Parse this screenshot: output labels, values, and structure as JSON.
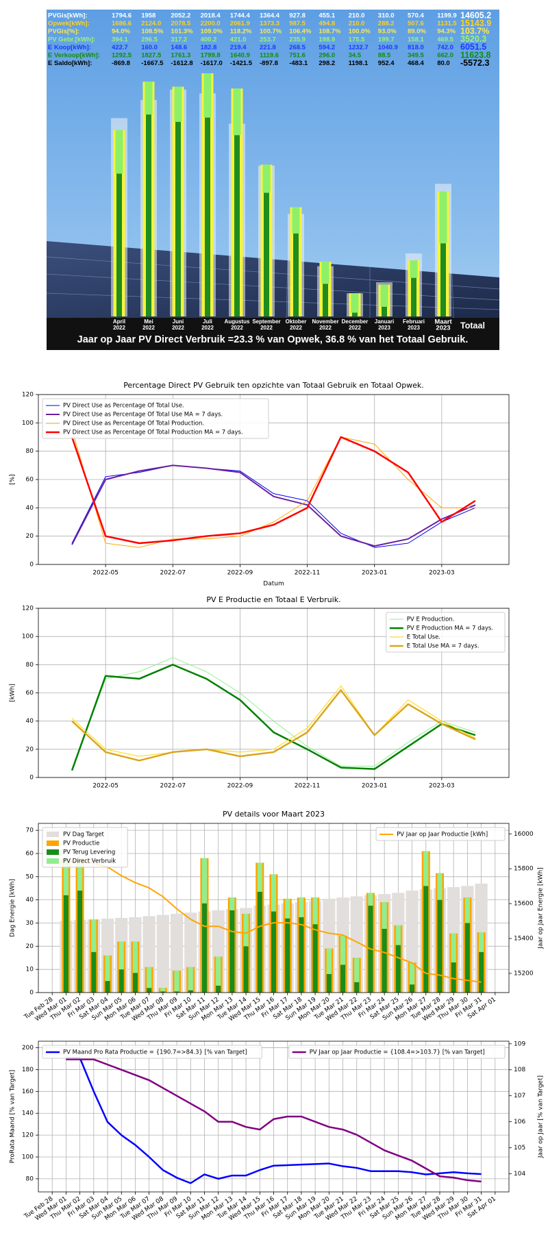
{
  "chart_data": [
    {
      "type": "summary",
      "categories": [
        [
          "April",
          "2022"
        ],
        [
          "Mei",
          "2022"
        ],
        [
          "Juni",
          "2022"
        ],
        [
          "Juli",
          "2022"
        ],
        [
          "Augustus",
          "2022"
        ],
        [
          "September",
          "2022"
        ],
        [
          "Oktober",
          "2022"
        ],
        [
          "November",
          "2022"
        ],
        [
          "December",
          "2022"
        ],
        [
          "Januari",
          "2023"
        ],
        [
          "Februari",
          "2023"
        ],
        [
          "Maart",
          "2023"
        ]
      ],
      "total_label": "Totaal",
      "rows": [
        {
          "name": "PVGis[kWh]:",
          "color": "#ffffff",
          "bar_color": "#eef3f6",
          "values": [
            1794.6,
            1958,
            2052.2,
            2018.4,
            1744.4,
            1364.4,
            927.8,
            455.1,
            210.0,
            310.0,
            570.4,
            1199.9
          ],
          "value_labels": [
            "1794.6",
            "1958",
            "2052.2",
            "2018.4",
            "1744.4",
            "1364.4",
            "927.8",
            "455.1",
            "210.0",
            "310.0",
            "570.4",
            "1199.9"
          ],
          "total": 14605.2,
          "total_label": "14605.2"
        },
        {
          "name": "Opwek[kWh]:",
          "color": "#ffd21f",
          "bar_color": "#f4f43c",
          "values": [
            1686.6,
            2124.0,
            2078.5,
            2200.0,
            2061.9,
            1373.3,
            987.5,
            494.8,
            210.0,
            288.2,
            507.6,
            1131.5
          ],
          "value_labels": [
            "1686.6",
            "2124.0",
            "2078.5",
            "2200.0",
            "2061.9",
            "1373.3",
            "987.5",
            "494.8",
            "210.0",
            "288.2",
            "507.6",
            "1131.5"
          ],
          "total": 15143.9,
          "total_label": "15143.9"
        },
        {
          "name": "PVGis[%]:",
          "color": "#ffe94d",
          "values": [
            94.0,
            108.5,
            101.3,
            109.0,
            118.2,
            100.7,
            106.4,
            108.7,
            100.0,
            93.0,
            89.0,
            94.3
          ],
          "value_labels": [
            "94.0%",
            "108.5%",
            "101.3%",
            "109.0%",
            "118.2%",
            "100.7%",
            "106.4%",
            "108.7%",
            "100.0%",
            "93.0%",
            "89.0%",
            "94.3%"
          ],
          "total": 103.7,
          "total_label": "103.7%"
        },
        {
          "name": "PV Gebr.[kWh]:",
          "color": "#9df27a",
          "bar_color": "#8ef06a",
          "values": [
            394.1,
            296.5,
            317.2,
            400.2,
            421.0,
            253.7,
            235.9,
            198.9,
            175.5,
            199.7,
            158.1,
            469.5
          ],
          "value_labels": [
            "394.1",
            "296.5",
            "317.2",
            "400.2",
            "421.0",
            "253.7",
            "235.9",
            "198.9",
            "175.5",
            "199.7",
            "158.1",
            "469.5"
          ],
          "total": 3520.3,
          "total_label": "3520.3"
        },
        {
          "name": "E Koop[kWh]:",
          "color": "#1a3cff",
          "values": [
            422.7,
            160.0,
            148.6,
            182.8,
            219.4,
            221.8,
            268.5,
            594.2,
            1232.7,
            1040.9,
            818.0,
            742.0
          ],
          "value_labels": [
            "422.7",
            "160.0",
            "148.6",
            "182.8",
            "219.4",
            "221.8",
            "268.5",
            "594.2",
            "1232.7",
            "1040.9",
            "818.0",
            "742.0"
          ],
          "total": 6051.5,
          "total_label": "6051.5"
        },
        {
          "name": "E Verkoop[kWh]:",
          "color": "#118a11",
          "bar_color": "#1e8c1e",
          "values": [
            1292.5,
            1827.5,
            1761.3,
            1799.8,
            1640.9,
            1119.6,
            751.6,
            296.0,
            34.5,
            88.5,
            349.5,
            662.0
          ],
          "value_labels": [
            "1292.5",
            "1827.5",
            "1761.3",
            "1799.8",
            "1640.9",
            "1119.6",
            "751.6",
            "296.0",
            "34.5",
            "88.5",
            "349.5",
            "662.0"
          ],
          "total": 11623.8,
          "total_label": "11623.8"
        },
        {
          "name": "E Saldo[kWh]:",
          "color": "#000000",
          "values": [
            -869.8,
            -1667.5,
            -1612.8,
            -1617.0,
            -1421.5,
            -897.8,
            -483.1,
            298.2,
            1198.1,
            952.4,
            468.4,
            80.0
          ],
          "value_labels": [
            "-869.8",
            "-1667.5",
            "-1612.8",
            "-1617.0",
            "-1421.5",
            "-897.8",
            "-483.1",
            "298.2",
            "1198.1",
            "952.4",
            "468.4",
            "80.0"
          ],
          "total": -5572.3,
          "total_label": "-5572.3"
        }
      ],
      "caption": "Jaar op Jaar PV Direct Verbruik =23.3 % van Opwek, 36.8 % van het Totaal Gebruik."
    },
    {
      "type": "line",
      "title": "Percentage Direct PV Gebruik ten opzichte van Totaal Gebruik en Totaal Opwek.",
      "xlabel": "Datum",
      "ylabel": "[%]",
      "x": [
        "2022-04",
        "2022-05",
        "2022-06",
        "2022-07",
        "2022-08",
        "2022-09",
        "2022-10",
        "2022-11",
        "2022-12",
        "2023-01",
        "2023-02",
        "2023-03",
        "2023-04"
      ],
      "xlim": [
        "2022-03",
        "2023-05"
      ],
      "xticks": [
        "2022-05",
        "2022-07",
        "2022-09",
        "2022-11",
        "2023-01",
        "2023-03"
      ],
      "ylim": [
        0,
        120
      ],
      "yticks": [
        0,
        20,
        40,
        60,
        80,
        100,
        120
      ],
      "grid": true,
      "legend": "upper left",
      "series": [
        {
          "name": "PV Direct Use as Percentage Of Total Use.",
          "color": "#0000ee",
          "linewidth": 1,
          "values": [
            15,
            62,
            65,
            70,
            68,
            66,
            50,
            45,
            22,
            12,
            15,
            30,
            40
          ]
        },
        {
          "name": "PV Direct Use as Percentage Of Total Use MA = 7 days.",
          "color": "#6a1fa0",
          "linewidth": 2,
          "values": [
            14,
            60,
            66,
            70,
            68,
            65,
            48,
            42,
            20,
            13,
            18,
            32,
            42
          ]
        },
        {
          "name": "PV Direct Use as Percentage Of Total Production.",
          "color": "#ffa500",
          "linewidth": 1,
          "values": [
            95,
            15,
            12,
            18,
            18,
            20,
            30,
            45,
            90,
            85,
            60,
            40,
            40
          ]
        },
        {
          "name": "PV Direct Use as Percentage Of Total Production MA = 7 days.",
          "color": "#ff0000",
          "linewidth": 2.5,
          "values": [
            90,
            20,
            15,
            17,
            20,
            22,
            28,
            40,
            90,
            80,
            65,
            30,
            45
          ]
        }
      ]
    },
    {
      "type": "line",
      "title": "PV E Productie en Totaal E Verbruik.",
      "ylabel": "[kWh]",
      "x": [
        "2022-04",
        "2022-05",
        "2022-06",
        "2022-07",
        "2022-08",
        "2022-09",
        "2022-10",
        "2022-11",
        "2022-12",
        "2023-01",
        "2023-02",
        "2023-03",
        "2023-04"
      ],
      "xlim": [
        "2022-03",
        "2023-05"
      ],
      "xticks": [
        "2022-05",
        "2022-07",
        "2022-09",
        "2022-11",
        "2023-01",
        "2023-03"
      ],
      "ylim": [
        0,
        120
      ],
      "yticks": [
        0,
        20,
        40,
        60,
        80,
        100,
        120
      ],
      "grid": true,
      "legend": "upper right",
      "series": [
        {
          "name": "PV E Production.",
          "color": "#90ee90",
          "linewidth": 1,
          "values": [
            5,
            70,
            75,
            85,
            75,
            60,
            40,
            22,
            8,
            8,
            25,
            40,
            32
          ]
        },
        {
          "name": "PV E Production MA = 7 days.",
          "color": "#008000",
          "linewidth": 2.5,
          "values": [
            5,
            72,
            70,
            80,
            70,
            55,
            32,
            20,
            7,
            6,
            22,
            38,
            30
          ]
        },
        {
          "name": "E Total Use.",
          "color": "#ffd700",
          "linewidth": 1,
          "values": [
            42,
            20,
            15,
            18,
            20,
            18,
            20,
            35,
            65,
            30,
            55,
            40,
            28
          ]
        },
        {
          "name": "E Total Use MA = 7 days.",
          "color": "#daa520",
          "linewidth": 2.5,
          "values": [
            40,
            18,
            12,
            18,
            20,
            15,
            18,
            32,
            62,
            30,
            52,
            38,
            27
          ]
        }
      ]
    },
    {
      "type": "bar",
      "title": "PV details voor Maart 2023",
      "ylabel": "Dag Energie [kWh]",
      "y2label": "Jaar op Jaar Energie [kWh]",
      "categories": [
        "Tue Feb 28",
        "Wed Mar 01",
        "Thu Mar 02",
        "Fri Mar 03",
        "Sat Mar 04",
        "Sun Mar 05",
        "Mon Mar 06",
        "Tue Mar 07",
        "Wed Mar 08",
        "Thu Mar 09",
        "Fri Mar 10",
        "Sat Mar 11",
        "Sun Mar 12",
        "Mon Mar 13",
        "Tue Mar 14",
        "Wed Mar 15",
        "Thu Mar 16",
        "Fri Mar 17",
        "Sat Mar 18",
        "Sun Mar 19",
        "Mon Mar 20",
        "Tue Mar 21",
        "Wed Mar 22",
        "Thu Mar 23",
        "Fri Mar 24",
        "Sat Mar 25",
        "Sun Mar 26",
        "Mon Mar 27",
        "Tue Mar 28",
        "Wed Mar 29",
        "Thu Mar 30",
        "Fri Mar 31",
        "Sat Apr 01"
      ],
      "ylim": [
        0,
        73
      ],
      "yticks": [
        0,
        10,
        20,
        30,
        40,
        50,
        60,
        70
      ],
      "y2lim": [
        15090,
        16060
      ],
      "y2ticks": [
        15200,
        15400,
        15600,
        15800,
        16000
      ],
      "grid": true,
      "legend": "upper left",
      "legend2": "upper right",
      "series": [
        {
          "name": "PV Dag Target",
          "color": "#e2dedb",
          "values": [
            null,
            31,
            31.3,
            31.6,
            31.9,
            32.2,
            32.5,
            33,
            33.5,
            34,
            34.5,
            35,
            35.5,
            36,
            36.5,
            37.5,
            38,
            38.5,
            39,
            39.5,
            40.5,
            41,
            41.5,
            42,
            42.5,
            43,
            44,
            44.5,
            45,
            45.5,
            46,
            47,
            null
          ]
        },
        {
          "name": "PV Productie",
          "color": "#ffa500",
          "values": [
            null,
            58,
            58,
            31.5,
            16,
            22,
            22,
            11,
            2,
            9.5,
            11,
            58,
            15.5,
            41,
            34,
            56,
            51,
            40.5,
            41,
            41,
            19,
            24.5,
            15,
            43,
            39,
            29,
            13,
            61,
            51.5,
            25.5,
            41,
            26,
            null
          ]
        },
        {
          "name": "PV Terug Levering",
          "color": "#1a8c1a",
          "values": [
            null,
            42,
            44,
            17.5,
            5,
            10,
            8.5,
            2,
            0.5,
            0.5,
            1,
            38.5,
            3,
            35.5,
            20,
            43.5,
            35,
            32,
            32.5,
            29.5,
            8,
            12,
            4.5,
            37.5,
            27.5,
            20.5,
            3.5,
            46,
            40,
            13,
            30,
            17.5,
            null
          ]
        },
        {
          "name": "PV Direct Verbruik",
          "color": "#90ee90",
          "values": [
            null,
            16,
            14,
            14,
            11,
            12,
            13.5,
            9,
            1.5,
            9,
            10,
            19.5,
            12.5,
            5.5,
            14,
            12.5,
            16,
            8.5,
            8.5,
            11.5,
            11,
            12.5,
            10.5,
            5.5,
            11.5,
            8.5,
            9.5,
            15,
            11.5,
            12.5,
            11,
            8.5,
            null
          ]
        },
        {
          "name": "PV Jaar op Jaar Productie [kWh]",
          "color": "#ffa500",
          "type": "line",
          "axis": "y2",
          "linewidth": 2,
          "values": [
            null,
            15840,
            15840,
            15830,
            15810,
            15760,
            15720,
            15690,
            15640,
            15570,
            15510,
            15470,
            15470,
            15440,
            15430,
            15470,
            15490,
            15490,
            15480,
            15450,
            15430,
            15420,
            15380,
            15340,
            15320,
            15290,
            15260,
            15200,
            15190,
            15170,
            15160,
            15150,
            null
          ]
        }
      ]
    },
    {
      "type": "line",
      "ylabel": "ProRata Maand [% van Target]",
      "y2label": "Jaar op Jaar [% van Target]",
      "categories": [
        "Tue Feb 28",
        "Wed Mar 01",
        "Thu Mar 02",
        "Fri Mar 03",
        "Sat Mar 04",
        "Sun Mar 05",
        "Mon Mar 06",
        "Tue Mar 07",
        "Wed Mar 08",
        "Thu Mar 09",
        "Fri Mar 10",
        "Sat Mar 11",
        "Sun Mar 12",
        "Mon Mar 13",
        "Tue Mar 14",
        "Wed Mar 15",
        "Thu Mar 16",
        "Fri Mar 17",
        "Sat Mar 18",
        "Sun Mar 19",
        "Mon Mar 20",
        "Tue Mar 21",
        "Wed Mar 22",
        "Thu Mar 23",
        "Fri Mar 24",
        "Sat Mar 25",
        "Sun Mar 26",
        "Mon Mar 27",
        "Tue Mar 28",
        "Wed Mar 29",
        "Thu Mar 30",
        "Fri Mar 31",
        "Sat Apr 01"
      ],
      "ylim": [
        68,
        206
      ],
      "yticks": [
        80,
        100,
        120,
        140,
        160,
        180,
        200
      ],
      "y2lim": [
        103.3,
        109.1
      ],
      "y2ticks": [
        104,
        105,
        106,
        107,
        108,
        109
      ],
      "grid": true,
      "legend": "upper left",
      "legend2": "upper right",
      "series": [
        {
          "name": "PV Maand Pro Rata Productie = {190.7=>84.3} [% van Target]",
          "color": "#0000ff",
          "linewidth": 2.5,
          "values": [
            null,
            190.7,
            190.7,
            160,
            132,
            120,
            111,
            100,
            88,
            81,
            76,
            84,
            80,
            83,
            83,
            88,
            92,
            92.5,
            93,
            93.5,
            94,
            91.5,
            90,
            87,
            87,
            87,
            86,
            84,
            85,
            86,
            85,
            84.3,
            null
          ]
        },
        {
          "name": "PV Jaar op Jaar Productie = {108.4=>103.7} [% van Target]",
          "color": "#800080",
          "linewidth": 2.5,
          "axis": "y2",
          "values": [
            null,
            108.4,
            108.4,
            108.4,
            108.2,
            108.0,
            107.8,
            107.6,
            107.3,
            107.0,
            106.7,
            106.4,
            106.0,
            106.0,
            105.8,
            105.7,
            106.1,
            106.2,
            106.2,
            106.0,
            105.8,
            105.7,
            105.5,
            105.2,
            104.9,
            104.7,
            104.5,
            104.2,
            103.9,
            103.85,
            103.75,
            103.7,
            null
          ]
        }
      ]
    }
  ]
}
